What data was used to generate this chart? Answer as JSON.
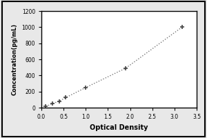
{
  "x_data": [
    0.1,
    0.25,
    0.4,
    0.55,
    1.0,
    1.9,
    3.17
  ],
  "y_data": [
    15,
    50,
    80,
    125,
    250,
    490,
    1000
  ],
  "xlabel": "Optical Density",
  "ylabel": "Concentration(pg/mL)",
  "xlim": [
    0,
    3.5
  ],
  "ylim": [
    0,
    1200
  ],
  "xticks": [
    0,
    0.5,
    1.0,
    1.5,
    2.0,
    2.5,
    3.0,
    3.5
  ],
  "yticks": [
    0,
    200,
    400,
    600,
    800,
    1000,
    1200
  ],
  "line_color": "#777777",
  "marker_color": "#444444",
  "plot_bg": "#ffffff",
  "outer_bg": "#e8e8e8",
  "border_color": "#000000"
}
